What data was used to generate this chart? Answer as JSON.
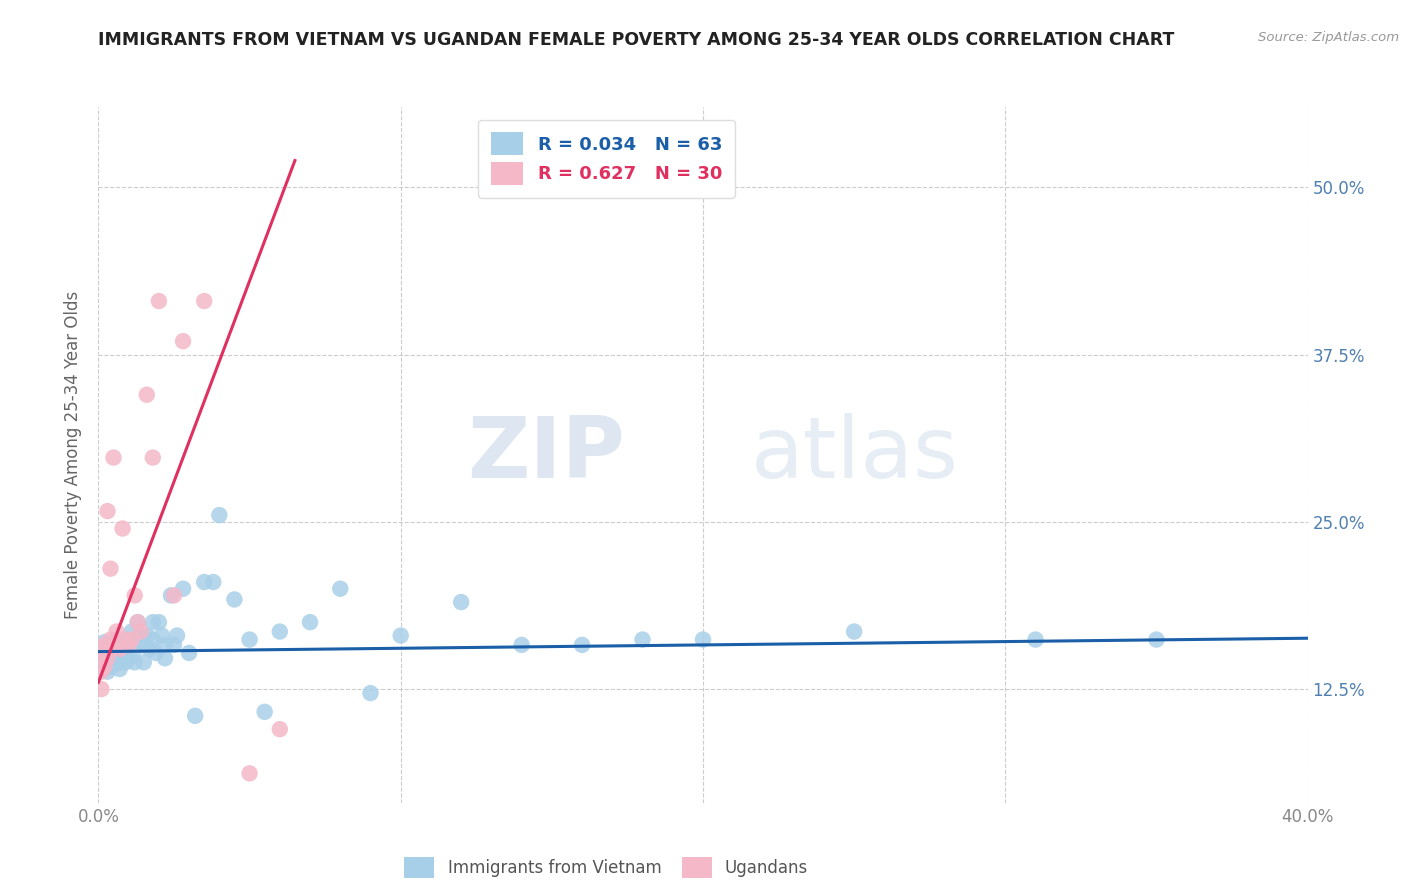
{
  "title": "IMMIGRANTS FROM VIETNAM VS UGANDAN FEMALE POVERTY AMONG 25-34 YEAR OLDS CORRELATION CHART",
  "source": "Source: ZipAtlas.com",
  "ylabel": "Female Poverty Among 25-34 Year Olds",
  "xlim": [
    0.0,
    0.4
  ],
  "ylim": [
    0.04,
    0.56
  ],
  "yticks": [
    0.125,
    0.25,
    0.375,
    0.5
  ],
  "ytick_labels": [
    "12.5%",
    "25.0%",
    "37.5%",
    "50.0%"
  ],
  "xticks": [
    0.0,
    0.1,
    0.2,
    0.3,
    0.4
  ],
  "xtick_labels": [
    "0.0%",
    "",
    "",
    "",
    "40.0%"
  ],
  "legend_r1": "R = 0.034",
  "legend_n1": "N = 63",
  "legend_r2": "R = 0.627",
  "legend_n2": "N = 30",
  "color_blue": "#a8cfe8",
  "color_pink": "#f4b8c8",
  "line_blue": "#1a5fa8",
  "line_pink": "#e03060",
  "watermark_zip": "ZIP",
  "watermark_atlas": "atlas",
  "background_color": "#ffffff",
  "grid_color": "#cccccc",
  "blue_scatter_x": [
    0.001,
    0.001,
    0.002,
    0.002,
    0.003,
    0.003,
    0.003,
    0.004,
    0.004,
    0.005,
    0.005,
    0.006,
    0.006,
    0.006,
    0.007,
    0.007,
    0.008,
    0.008,
    0.009,
    0.009,
    0.01,
    0.01,
    0.011,
    0.012,
    0.012,
    0.013,
    0.014,
    0.015,
    0.015,
    0.016,
    0.017,
    0.018,
    0.018,
    0.019,
    0.02,
    0.021,
    0.022,
    0.022,
    0.024,
    0.025,
    0.026,
    0.028,
    0.03,
    0.032,
    0.035,
    0.038,
    0.04,
    0.045,
    0.05,
    0.055,
    0.06,
    0.07,
    0.08,
    0.09,
    0.1,
    0.12,
    0.14,
    0.16,
    0.18,
    0.2,
    0.25,
    0.31,
    0.35
  ],
  "blue_scatter_y": [
    0.155,
    0.145,
    0.16,
    0.14,
    0.155,
    0.148,
    0.138,
    0.152,
    0.142,
    0.158,
    0.148,
    0.155,
    0.162,
    0.144,
    0.15,
    0.14,
    0.148,
    0.155,
    0.158,
    0.145,
    0.162,
    0.148,
    0.168,
    0.155,
    0.145,
    0.175,
    0.165,
    0.158,
    0.145,
    0.165,
    0.155,
    0.175,
    0.162,
    0.152,
    0.175,
    0.165,
    0.148,
    0.158,
    0.195,
    0.158,
    0.165,
    0.2,
    0.152,
    0.105,
    0.205,
    0.205,
    0.255,
    0.192,
    0.162,
    0.108,
    0.168,
    0.175,
    0.2,
    0.122,
    0.165,
    0.19,
    0.158,
    0.158,
    0.162,
    0.162,
    0.168,
    0.162,
    0.162
  ],
  "pink_scatter_x": [
    0.001,
    0.001,
    0.001,
    0.001,
    0.002,
    0.002,
    0.003,
    0.003,
    0.004,
    0.004,
    0.004,
    0.005,
    0.005,
    0.006,
    0.007,
    0.008,
    0.009,
    0.01,
    0.011,
    0.012,
    0.013,
    0.014,
    0.016,
    0.018,
    0.02,
    0.025,
    0.028,
    0.035,
    0.05,
    0.06
  ],
  "pink_scatter_y": [
    0.148,
    0.155,
    0.138,
    0.125,
    0.158,
    0.142,
    0.148,
    0.258,
    0.155,
    0.215,
    0.162,
    0.158,
    0.298,
    0.168,
    0.155,
    0.245,
    0.162,
    0.158,
    0.162,
    0.195,
    0.175,
    0.168,
    0.345,
    0.298,
    0.415,
    0.195,
    0.385,
    0.415,
    0.062,
    0.095
  ],
  "pink_line_x0": 0.0,
  "pink_line_y0": 0.13,
  "pink_line_x1": 0.065,
  "pink_line_y1": 0.52,
  "blue_line_x0": 0.0,
  "blue_line_y0": 0.153,
  "blue_line_x1": 0.4,
  "blue_line_y1": 0.163
}
